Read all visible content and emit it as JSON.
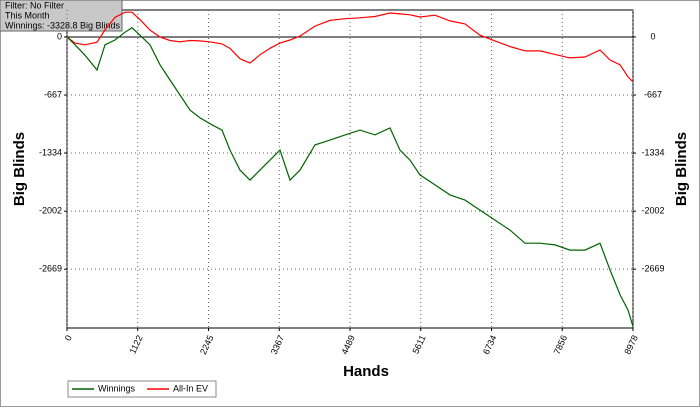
{
  "chart_data": {
    "type": "line",
    "annotations": [
      "Filter: No Filter",
      "This Month",
      "Winnings: -3328.8 Big Blinds"
    ],
    "xlabel": "Hands",
    "ylabel": "Big Blinds",
    "y2label": "Big Blinds",
    "x": [
      0,
      127,
      285,
      476,
      603,
      761,
      920,
      1031,
      1158,
      1316,
      1475,
      1634,
      1792,
      1951,
      2110,
      2300,
      2459,
      2586,
      2744,
      2903,
      3061,
      3220,
      3379,
      3537,
      3696,
      3934,
      4172,
      4410,
      4648,
      4886,
      5124,
      5282,
      5441,
      5599,
      5837,
      6075,
      6313,
      6551,
      6789,
      7027,
      7265,
      7503,
      7741,
      7979,
      8217,
      8455,
      8614,
      8773,
      8900,
      8978
    ],
    "series": [
      {
        "name": "Winnings",
        "color": "#006400",
        "values": [
          0,
          -90,
          -210,
          -380,
          -90,
          -35,
          55,
          105,
          20,
          -90,
          -320,
          -495,
          -667,
          -840,
          -930,
          -1010,
          -1070,
          -1300,
          -1530,
          -1645,
          -1530,
          -1415,
          -1300,
          -1645,
          -1530,
          -1240,
          -1185,
          -1125,
          -1070,
          -1125,
          -1045,
          -1300,
          -1415,
          -1585,
          -1700,
          -1815,
          -1875,
          -1990,
          -2105,
          -2220,
          -2370,
          -2370,
          -2390,
          -2450,
          -2450,
          -2370,
          -2680,
          -2965,
          -3140,
          -3328.8
        ]
      },
      {
        "name": "All-In EV",
        "color": "#ff0000",
        "values": [
          0,
          -70,
          -90,
          -60,
          80,
          225,
          285,
          285,
          200,
          80,
          0,
          -40,
          -55,
          -40,
          -45,
          -60,
          -80,
          -130,
          -250,
          -300,
          -205,
          -130,
          -70,
          -35,
          10,
          125,
          190,
          210,
          220,
          235,
          275,
          265,
          255,
          230,
          250,
          185,
          150,
          20,
          -45,
          -110,
          -160,
          -160,
          -200,
          -240,
          -230,
          -150,
          -265,
          -320,
          -460,
          -515
        ]
      }
    ],
    "xlim": [
      0,
      8978
    ],
    "xticks": [
      0,
      1122,
      2245,
      3367,
      4489,
      5611,
      6734,
      7856,
      8978
    ],
    "ylim": [
      -3345,
      310
    ],
    "yticks": [
      -2669,
      -2002,
      -1334,
      -667,
      0
    ],
    "y2lim": [
      -3345,
      310
    ],
    "y2ticks": [
      -2669,
      -2002,
      -1334,
      -667,
      0
    ],
    "grid": true
  }
}
